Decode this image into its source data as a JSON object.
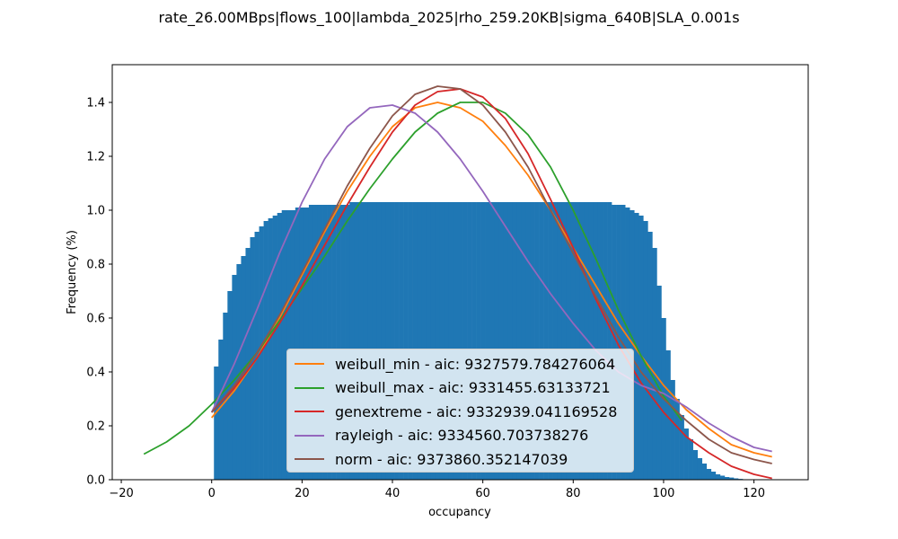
{
  "chart_data": {
    "type": "bar",
    "title": "rate_26.00MBps|flows_100|lambda_2025|rho_259.20KB|sigma_640B|SLA_0.001s",
    "xlabel": "occupancy",
    "ylabel": "Frequency (%)",
    "xlim": [
      -22,
      132
    ],
    "ylim": [
      0,
      1.54
    ],
    "xticks": [
      -20,
      0,
      20,
      40,
      60,
      80,
      100,
      120
    ],
    "yticks": [
      0.0,
      0.2,
      0.4,
      0.6,
      0.8,
      1.0,
      1.2,
      1.4
    ],
    "xtick_labels": [
      "−20",
      "0",
      "20",
      "40",
      "60",
      "80",
      "100",
      "120"
    ],
    "ytick_labels": [
      "0.0",
      "0.2",
      "0.4",
      "0.6",
      "0.8",
      "1.0",
      "1.2",
      "1.4"
    ],
    "grid": false,
    "legend_position": "lower center",
    "histogram": {
      "color": "#1f77b4",
      "bin_width": 1.0,
      "bins_start": 0.5,
      "values": [
        0.42,
        0.52,
        0.62,
        0.7,
        0.76,
        0.8,
        0.83,
        0.86,
        0.9,
        0.92,
        0.94,
        0.96,
        0.97,
        0.98,
        0.99,
        1.0,
        1.0,
        1.0,
        1.01,
        1.01,
        1.01,
        1.02,
        1.02,
        1.02,
        1.02,
        1.02,
        1.02,
        1.02,
        1.02,
        1.02,
        1.03,
        1.03,
        1.03,
        1.03,
        1.03,
        1.03,
        1.03,
        1.03,
        1.03,
        1.03,
        1.03,
        1.03,
        1.03,
        1.03,
        1.03,
        1.03,
        1.03,
        1.03,
        1.03,
        1.03,
        1.03,
        1.03,
        1.03,
        1.03,
        1.03,
        1.03,
        1.03,
        1.03,
        1.03,
        1.03,
        1.03,
        1.03,
        1.03,
        1.03,
        1.03,
        1.03,
        1.03,
        1.03,
        1.03,
        1.03,
        1.03,
        1.03,
        1.03,
        1.03,
        1.03,
        1.03,
        1.03,
        1.03,
        1.03,
        1.03,
        1.03,
        1.03,
        1.03,
        1.03,
        1.03,
        1.03,
        1.03,
        1.03,
        1.02,
        1.02,
        1.02,
        1.01,
        1.0,
        0.99,
        0.98,
        0.96,
        0.92,
        0.86,
        0.72,
        0.6,
        0.48,
        0.37,
        0.3,
        0.24,
        0.19,
        0.15,
        0.11,
        0.08,
        0.06,
        0.04,
        0.03,
        0.02,
        0.015,
        0.01,
        0.008,
        0.005,
        0.003
      ]
    },
    "series": [
      {
        "name": "weibull_min - aic: 9327579.784276064",
        "color": "#ff7f0e",
        "x": [
          0,
          5,
          10,
          15,
          20,
          25,
          30,
          35,
          40,
          45,
          50,
          55,
          60,
          65,
          70,
          75,
          80,
          85,
          90,
          95,
          100,
          105,
          110,
          115,
          120,
          124
        ],
        "y": [
          0.23,
          0.33,
          0.45,
          0.6,
          0.76,
          0.92,
          1.07,
          1.2,
          1.31,
          1.38,
          1.4,
          1.38,
          1.33,
          1.24,
          1.13,
          1.0,
          0.86,
          0.72,
          0.58,
          0.46,
          0.35,
          0.26,
          0.19,
          0.13,
          0.1,
          0.085
        ]
      },
      {
        "name": "weibull_max - aic: 9331455.63133721",
        "color": "#2ca02c",
        "x": [
          -15,
          -10,
          -5,
          0,
          5,
          10,
          15,
          20,
          25,
          30,
          35,
          40,
          45,
          50,
          55,
          60,
          65,
          70,
          75,
          80,
          85,
          90,
          95,
          100,
          104
        ],
        "y": [
          0.095,
          0.14,
          0.2,
          0.28,
          0.37,
          0.47,
          0.59,
          0.71,
          0.83,
          0.96,
          1.08,
          1.19,
          1.29,
          1.36,
          1.4,
          1.4,
          1.36,
          1.28,
          1.16,
          1.0,
          0.82,
          0.63,
          0.46,
          0.31,
          0.22
        ]
      },
      {
        "name": "genextreme - aic: 9332939.041169528",
        "color": "#d62728",
        "x": [
          0,
          5,
          10,
          15,
          20,
          25,
          30,
          35,
          40,
          45,
          50,
          55,
          60,
          65,
          70,
          75,
          80,
          85,
          90,
          95,
          100,
          105,
          110,
          115,
          120,
          124
        ],
        "y": [
          0.25,
          0.34,
          0.45,
          0.58,
          0.72,
          0.87,
          1.02,
          1.16,
          1.29,
          1.39,
          1.44,
          1.45,
          1.42,
          1.34,
          1.21,
          1.04,
          0.86,
          0.67,
          0.5,
          0.36,
          0.25,
          0.16,
          0.1,
          0.05,
          0.02,
          0.005
        ]
      },
      {
        "name": "rayleigh - aic: 9334560.703738276",
        "color": "#9467bd",
        "x": [
          0,
          5,
          10,
          15,
          20,
          25,
          30,
          35,
          40,
          45,
          50,
          55,
          60,
          65,
          70,
          75,
          80,
          85,
          90,
          95,
          100,
          105,
          110,
          115,
          120,
          124
        ],
        "y": [
          0.25,
          0.43,
          0.63,
          0.84,
          1.03,
          1.19,
          1.31,
          1.38,
          1.39,
          1.36,
          1.29,
          1.19,
          1.07,
          0.94,
          0.81,
          0.69,
          0.58,
          0.48,
          0.4,
          0.35,
          0.32,
          0.27,
          0.21,
          0.16,
          0.12,
          0.105
        ]
      },
      {
        "name": "norm - aic: 9373860.352147039",
        "color": "#8c564b",
        "x": [
          0,
          5,
          10,
          15,
          20,
          25,
          30,
          35,
          40,
          45,
          50,
          55,
          60,
          65,
          70,
          75,
          80,
          85,
          90,
          95,
          100,
          105,
          110,
          115,
          120,
          124
        ],
        "y": [
          0.25,
          0.35,
          0.47,
          0.61,
          0.77,
          0.93,
          1.09,
          1.23,
          1.35,
          1.43,
          1.46,
          1.45,
          1.39,
          1.29,
          1.16,
          1.0,
          0.84,
          0.68,
          0.53,
          0.4,
          0.3,
          0.22,
          0.15,
          0.1,
          0.075,
          0.06
        ]
      }
    ]
  }
}
